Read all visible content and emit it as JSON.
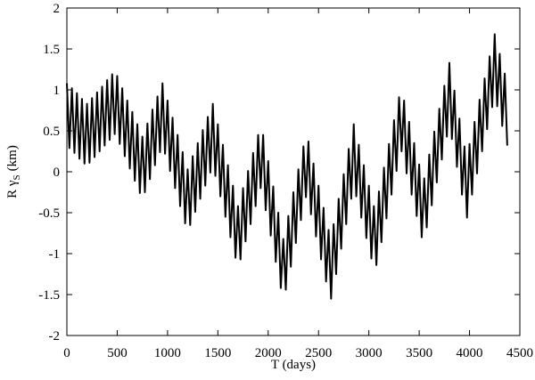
{
  "chart_data": {
    "type": "line",
    "xlabel": "T (days)",
    "ylabel": [
      "R γ",
      "S",
      "(km)"
    ],
    "xlim": [
      0,
      4500
    ],
    "ylim": [
      -2,
      2
    ],
    "xticks": [
      0,
      500,
      1000,
      1500,
      2000,
      2500,
      3000,
      3500,
      4000,
      4500
    ],
    "yticks": [
      -2,
      -1.5,
      -1,
      -0.5,
      0,
      0.5,
      1,
      1.5,
      2
    ],
    "grid": false,
    "series": [
      {
        "color": "#000000",
        "x": [
          0,
          25,
          50,
          75,
          100,
          125,
          150,
          175,
          200,
          225,
          250,
          275,
          300,
          325,
          350,
          375,
          400,
          425,
          450,
          475,
          500,
          525,
          550,
          575,
          600,
          625,
          650,
          675,
          700,
          725,
          750,
          775,
          800,
          825,
          850,
          875,
          900,
          925,
          950,
          975,
          1000,
          1025,
          1050,
          1075,
          1100,
          1125,
          1150,
          1175,
          1200,
          1225,
          1250,
          1275,
          1300,
          1325,
          1350,
          1375,
          1400,
          1425,
          1450,
          1475,
          1500,
          1525,
          1550,
          1575,
          1600,
          1625,
          1650,
          1675,
          1700,
          1725,
          1750,
          1775,
          1800,
          1825,
          1850,
          1875,
          1900,
          1925,
          1950,
          1975,
          2000,
          2025,
          2050,
          2075,
          2100,
          2125,
          2150,
          2175,
          2200,
          2225,
          2250,
          2275,
          2300,
          2325,
          2350,
          2375,
          2400,
          2425,
          2450,
          2475,
          2500,
          2525,
          2550,
          2575,
          2600,
          2625,
          2650,
          2675,
          2700,
          2725,
          2750,
          2775,
          2800,
          2825,
          2850,
          2875,
          2900,
          2925,
          2950,
          2975,
          3000,
          3025,
          3050,
          3075,
          3100,
          3125,
          3150,
          3175,
          3200,
          3225,
          3250,
          3275,
          3300,
          3325,
          3350,
          3375,
          3400,
          3425,
          3450,
          3475,
          3500,
          3525,
          3550,
          3575,
          3600,
          3625,
          3650,
          3675,
          3700,
          3725,
          3750,
          3775,
          3800,
          3825,
          3850,
          3875,
          3900,
          3925,
          3950,
          3975,
          4000,
          4025,
          4050,
          4075,
          4100,
          4125,
          4150,
          4175,
          4200,
          4225,
          4250,
          4275,
          4300,
          4325,
          4350,
          4375
        ],
        "values": [
          1.08,
          0.29,
          1.02,
          0.23,
          0.96,
          0.16,
          0.89,
          0.1,
          0.83,
          0.11,
          0.9,
          0.18,
          0.97,
          0.25,
          1.04,
          0.32,
          1.12,
          0.39,
          1.19,
          0.46,
          1.17,
          0.34,
          1.02,
          0.19,
          0.87,
          0.04,
          0.73,
          -0.11,
          0.58,
          -0.26,
          0.43,
          -0.25,
          0.59,
          -0.09,
          0.76,
          0.08,
          0.92,
          0.24,
          1.08,
          0.22,
          0.87,
          0.01,
          0.66,
          -0.2,
          0.45,
          -0.42,
          0.24,
          -0.63,
          0.03,
          -0.65,
          0.19,
          -0.49,
          0.35,
          -0.33,
          0.51,
          -0.17,
          0.67,
          -0.01,
          0.83,
          -0.05,
          0.58,
          -0.3,
          0.33,
          -0.55,
          0.08,
          -0.8,
          -0.17,
          -1.05,
          -0.42,
          -1.07,
          -0.2,
          -0.85,
          0.01,
          -0.64,
          0.23,
          -0.42,
          0.45,
          -0.2,
          0.45,
          -0.47,
          0.13,
          -0.78,
          -0.18,
          -1.1,
          -0.5,
          -1.42,
          -0.82,
          -1.44,
          -0.54,
          -1.16,
          -0.25,
          -0.87,
          0.03,
          -0.59,
          0.31,
          -0.31,
          0.37,
          -0.52,
          0.1,
          -0.79,
          -0.17,
          -1.07,
          -0.44,
          -1.34,
          -0.71,
          -1.55,
          -0.64,
          -1.25,
          -0.33,
          -0.94,
          -0.03,
          -0.64,
          0.28,
          -0.33,
          0.58,
          -0.3,
          0.33,
          -0.56,
          0.08,
          -0.81,
          -0.17,
          -1.06,
          -0.42,
          -1.14,
          -0.24,
          -0.86,
          0.05,
          -0.57,
          0.34,
          -0.28,
          0.63,
          0.01,
          0.91,
          0.25,
          0.87,
          -0.02,
          0.61,
          -0.28,
          0.35,
          -0.54,
          0.09,
          -0.8,
          -0.08,
          -0.68,
          0.21,
          -0.41,
          0.49,
          -0.13,
          0.77,
          0.15,
          1.05,
          0.43,
          1.33,
          0.4,
          0.99,
          0.06,
          0.65,
          -0.28,
          0.31,
          -0.56,
          0.34,
          -0.28,
          0.61,
          -0.02,
          0.88,
          0.25,
          1.14,
          0.52,
          1.41,
          0.79,
          1.68,
          0.8,
          1.44,
          0.56,
          1.2,
          0.32
        ]
      }
    ]
  }
}
